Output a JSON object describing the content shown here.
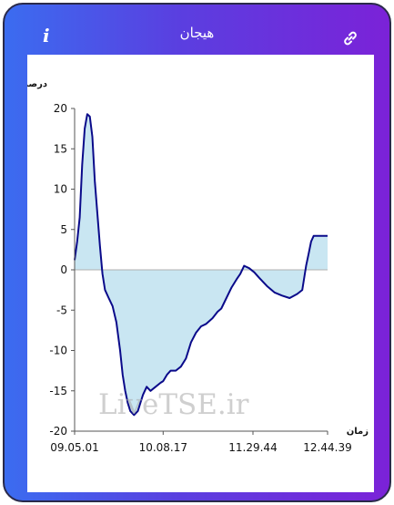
{
  "header": {
    "title": "هیجان",
    "info_icon": "i",
    "link_icon": "link-icon"
  },
  "colors": {
    "gradient_start": "#3b6cf0",
    "gradient_end": "#7b22d8",
    "line": "#0a0a8a",
    "fill": "#c9e6f2"
  },
  "watermark": "LiveTSE.ir",
  "chart_data": {
    "type": "area",
    "ylabel": "درصد",
    "xlabel": "زمان",
    "ylim": [
      -20,
      20
    ],
    "yticks": [
      20,
      15,
      10,
      5,
      0,
      -5,
      -10,
      -15,
      -20
    ],
    "xticks": [
      "09.05.01",
      "10.08.17",
      "11.29.44",
      "12.44.39"
    ],
    "xtick_positions": [
      0,
      0.35,
      0.705,
      1.0
    ],
    "grid": false,
    "points": [
      [
        0.0,
        1.2
      ],
      [
        0.01,
        3.5
      ],
      [
        0.02,
        6.5
      ],
      [
        0.03,
        13
      ],
      [
        0.04,
        17.5
      ],
      [
        0.05,
        19.3
      ],
      [
        0.06,
        19.0
      ],
      [
        0.07,
        16.5
      ],
      [
        0.08,
        11
      ],
      [
        0.09,
        7
      ],
      [
        0.1,
        3
      ],
      [
        0.11,
        -0.5
      ],
      [
        0.12,
        -2.5
      ],
      [
        0.135,
        -3.5
      ],
      [
        0.15,
        -4.5
      ],
      [
        0.165,
        -6.5
      ],
      [
        0.18,
        -10
      ],
      [
        0.19,
        -13
      ],
      [
        0.2,
        -15
      ],
      [
        0.21,
        -16.5
      ],
      [
        0.22,
        -17.5
      ],
      [
        0.235,
        -18
      ],
      [
        0.25,
        -17.5
      ],
      [
        0.26,
        -16.5
      ],
      [
        0.27,
        -15.5
      ],
      [
        0.285,
        -14.5
      ],
      [
        0.3,
        -15
      ],
      [
        0.32,
        -14.5
      ],
      [
        0.34,
        -14
      ],
      [
        0.35,
        -13.8
      ],
      [
        0.365,
        -13
      ],
      [
        0.38,
        -12.5
      ],
      [
        0.4,
        -12.5
      ],
      [
        0.42,
        -12
      ],
      [
        0.44,
        -11
      ],
      [
        0.46,
        -9
      ],
      [
        0.48,
        -7.8
      ],
      [
        0.5,
        -7
      ],
      [
        0.52,
        -6.7
      ],
      [
        0.545,
        -6.0
      ],
      [
        0.565,
        -5.2
      ],
      [
        0.58,
        -4.8
      ],
      [
        0.6,
        -3.5
      ],
      [
        0.62,
        -2.2
      ],
      [
        0.64,
        -1.2
      ],
      [
        0.655,
        -0.5
      ],
      [
        0.67,
        0.5
      ],
      [
        0.69,
        0.2
      ],
      [
        0.71,
        -0.3
      ],
      [
        0.73,
        -1.0
      ],
      [
        0.76,
        -2.0
      ],
      [
        0.79,
        -2.8
      ],
      [
        0.82,
        -3.2
      ],
      [
        0.85,
        -3.5
      ],
      [
        0.88,
        -3.0
      ],
      [
        0.9,
        -2.5
      ],
      [
        0.915,
        0.5
      ],
      [
        0.925,
        2.0
      ],
      [
        0.935,
        3.5
      ],
      [
        0.945,
        4.2
      ],
      [
        0.97,
        4.2
      ],
      [
        1.0,
        4.2
      ]
    ]
  }
}
